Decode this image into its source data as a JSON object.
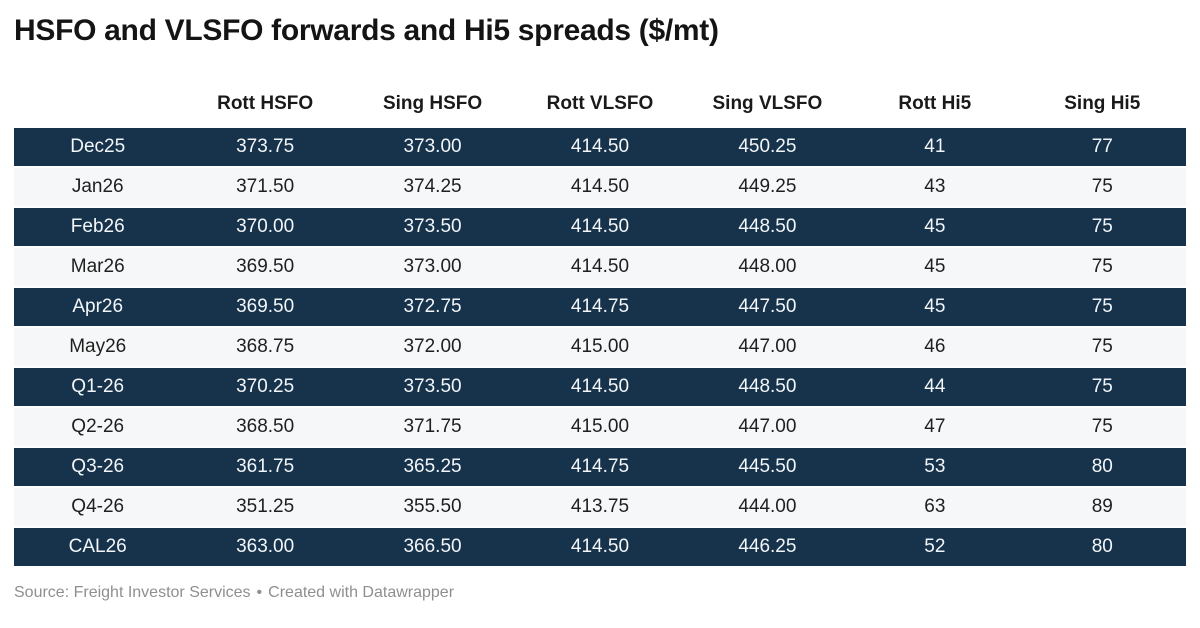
{
  "header": {
    "title": "HSFO and VLSFO forwards and Hi5 spreads ($/mt)"
  },
  "table": {
    "columns": [
      "",
      "Rott HSFO",
      "Sing HSFO",
      "Rott VLSFO",
      "Sing VLSFO",
      "Rott Hi5",
      "Sing Hi5"
    ],
    "rows": [
      {
        "label": "Dec25",
        "values": [
          "373.75",
          "373.00",
          "414.50",
          "450.25",
          "41",
          "77"
        ]
      },
      {
        "label": "Jan26",
        "values": [
          "371.50",
          "374.25",
          "414.50",
          "449.25",
          "43",
          "75"
        ]
      },
      {
        "label": "Feb26",
        "values": [
          "370.00",
          "373.50",
          "414.50",
          "448.50",
          "45",
          "75"
        ]
      },
      {
        "label": "Mar26",
        "values": [
          "369.50",
          "373.00",
          "414.50",
          "448.00",
          "45",
          "75"
        ]
      },
      {
        "label": "Apr26",
        "values": [
          "369.50",
          "372.75",
          "414.75",
          "447.50",
          "45",
          "75"
        ]
      },
      {
        "label": "May26",
        "values": [
          "368.75",
          "372.00",
          "415.00",
          "447.00",
          "46",
          "75"
        ]
      },
      {
        "label": "Q1-26",
        "values": [
          "370.25",
          "373.50",
          "414.50",
          "448.50",
          "44",
          "75"
        ]
      },
      {
        "label": "Q2-26",
        "values": [
          "368.50",
          "371.75",
          "415.00",
          "447.00",
          "47",
          "75"
        ]
      },
      {
        "label": "Q3-26",
        "values": [
          "361.75",
          "365.25",
          "414.75",
          "445.50",
          "53",
          "80"
        ]
      },
      {
        "label": "Q4-26",
        "values": [
          "351.25",
          "355.50",
          "413.75",
          "444.00",
          "63",
          "89"
        ]
      },
      {
        "label": "CAL26",
        "values": [
          "363.00",
          "366.50",
          "414.50",
          "446.25",
          "52",
          "80"
        ]
      }
    ]
  },
  "footer": {
    "source_text": "Source: Freight Investor Services",
    "separator": "•",
    "attribution": "Created with Datawrapper"
  },
  "colors": {
    "dark_row_bg": "#17334C",
    "light_row_bg": "#F5F7F8",
    "dark_row_text": "#F2F6F8",
    "light_row_text": "#1F1F1F",
    "title_text": "#141414",
    "footer_text": "#8F8F8F"
  },
  "chart_data": {
    "type": "table",
    "title": "HSFO and VLSFO forwards and Hi5 spreads ($/mt)",
    "columns": [
      "",
      "Rott HSFO",
      "Sing HSFO",
      "Rott VLSFO",
      "Sing VLSFO",
      "Rott Hi5",
      "Sing Hi5"
    ],
    "rows": [
      [
        "Dec25",
        373.75,
        373.0,
        414.5,
        450.25,
        41,
        77
      ],
      [
        "Jan26",
        371.5,
        374.25,
        414.5,
        449.25,
        43,
        75
      ],
      [
        "Feb26",
        370.0,
        373.5,
        414.5,
        448.5,
        45,
        75
      ],
      [
        "Mar26",
        369.5,
        373.0,
        414.5,
        448.0,
        45,
        75
      ],
      [
        "Apr26",
        369.5,
        372.75,
        414.75,
        447.5,
        45,
        75
      ],
      [
        "May26",
        368.75,
        372.0,
        415.0,
        447.0,
        46,
        75
      ],
      [
        "Q1-26",
        370.25,
        373.5,
        414.5,
        448.5,
        44,
        75
      ],
      [
        "Q2-26",
        368.5,
        371.75,
        415.0,
        447.0,
        47,
        75
      ],
      [
        "Q3-26",
        361.75,
        365.25,
        414.75,
        445.5,
        53,
        80
      ],
      [
        "Q4-26",
        351.25,
        355.5,
        413.75,
        444.0,
        63,
        89
      ],
      [
        "CAL26",
        363.0,
        366.5,
        414.5,
        446.25,
        52,
        80
      ]
    ],
    "layout_hints": {
      "row_striping": "rows 1,3,5,7,9,11 dark navy with white text; rows 2,4,6,8,10 light gray with dark text",
      "alignment": "all columns center-aligned",
      "grid": "2px white separators between rows"
    },
    "source": "Freight Investor Services",
    "created_with": "Datawrapper"
  }
}
